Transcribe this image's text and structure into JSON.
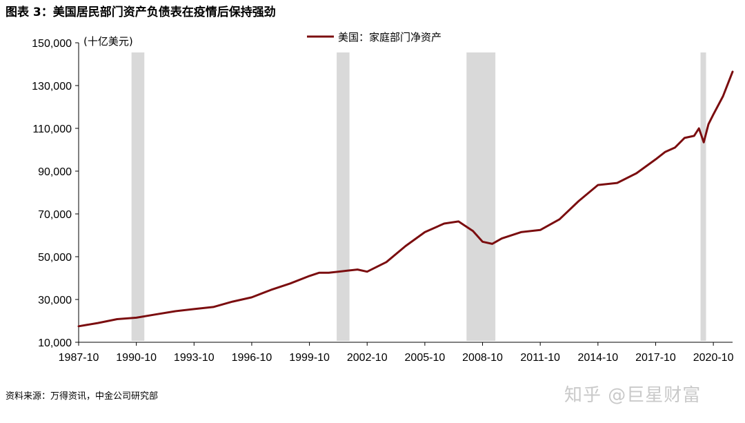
{
  "title": "图表 3：美国居民部门资产负债表在疫情后保持强劲",
  "source": "资料来源：万得资讯，中金公司研究部",
  "watermark": "知乎 @巨星财富",
  "colors": {
    "line": "#7b0d0f",
    "shade": "#d9d9d9"
  },
  "chart_data": {
    "type": "line",
    "unit_label": "(十亿美元)",
    "ylim": [
      10000,
      150000
    ],
    "yticks": [
      "10,000",
      "30,000",
      "50,000",
      "70,000",
      "90,000",
      "110,000",
      "130,000",
      "150,000"
    ],
    "ytick_values": [
      10000,
      30000,
      50000,
      70000,
      90000,
      110000,
      130000,
      150000
    ],
    "xlim": [
      "1987-10",
      "2021-10"
    ],
    "xticks": [
      "1987-10",
      "1990-10",
      "1993-10",
      "1996-10",
      "1999-10",
      "2002-10",
      "2005-10",
      "2008-10",
      "2011-10",
      "2014-10",
      "2017-10",
      "2020-10"
    ],
    "legend_position": "top-center",
    "recessions": [
      {
        "start": "1990-07",
        "end": "1991-03"
      },
      {
        "start": "2001-03",
        "end": "2001-11"
      },
      {
        "start": "2007-12",
        "end": "2009-06"
      },
      {
        "start": "2020-02",
        "end": "2020-04"
      }
    ],
    "series": [
      {
        "name": "美国：家庭部门净资产",
        "x": [
          "1987-10",
          "1988-10",
          "1989-10",
          "1990-10",
          "1991-10",
          "1992-10",
          "1993-10",
          "1994-10",
          "1995-10",
          "1996-10",
          "1997-10",
          "1998-10",
          "1999-10",
          "2000-04",
          "2000-10",
          "2001-04",
          "2001-10",
          "2002-04",
          "2002-10",
          "2003-10",
          "2004-10",
          "2005-10",
          "2006-10",
          "2007-07",
          "2007-10",
          "2008-04",
          "2008-10",
          "2009-04",
          "2009-10",
          "2010-10",
          "2011-10",
          "2012-10",
          "2013-10",
          "2014-10",
          "2015-10",
          "2016-10",
          "2017-10",
          "2018-04",
          "2018-10",
          "2019-04",
          "2019-10",
          "2020-01",
          "2020-04",
          "2020-07",
          "2020-10",
          "2021-04",
          "2021-10"
        ],
        "values": [
          17500,
          19000,
          20800,
          21500,
          23000,
          24500,
          25500,
          26500,
          29000,
          31000,
          34500,
          37500,
          41000,
          42500,
          42500,
          43000,
          43500,
          44000,
          43000,
          47500,
          55000,
          61500,
          65500,
          66500,
          65000,
          62000,
          57000,
          56000,
          58500,
          61500,
          62500,
          67500,
          76000,
          83500,
          84500,
          89000,
          95500,
          99000,
          101000,
          105500,
          106500,
          110000,
          103500,
          112000,
          116500,
          125000,
          136500
        ]
      }
    ]
  }
}
